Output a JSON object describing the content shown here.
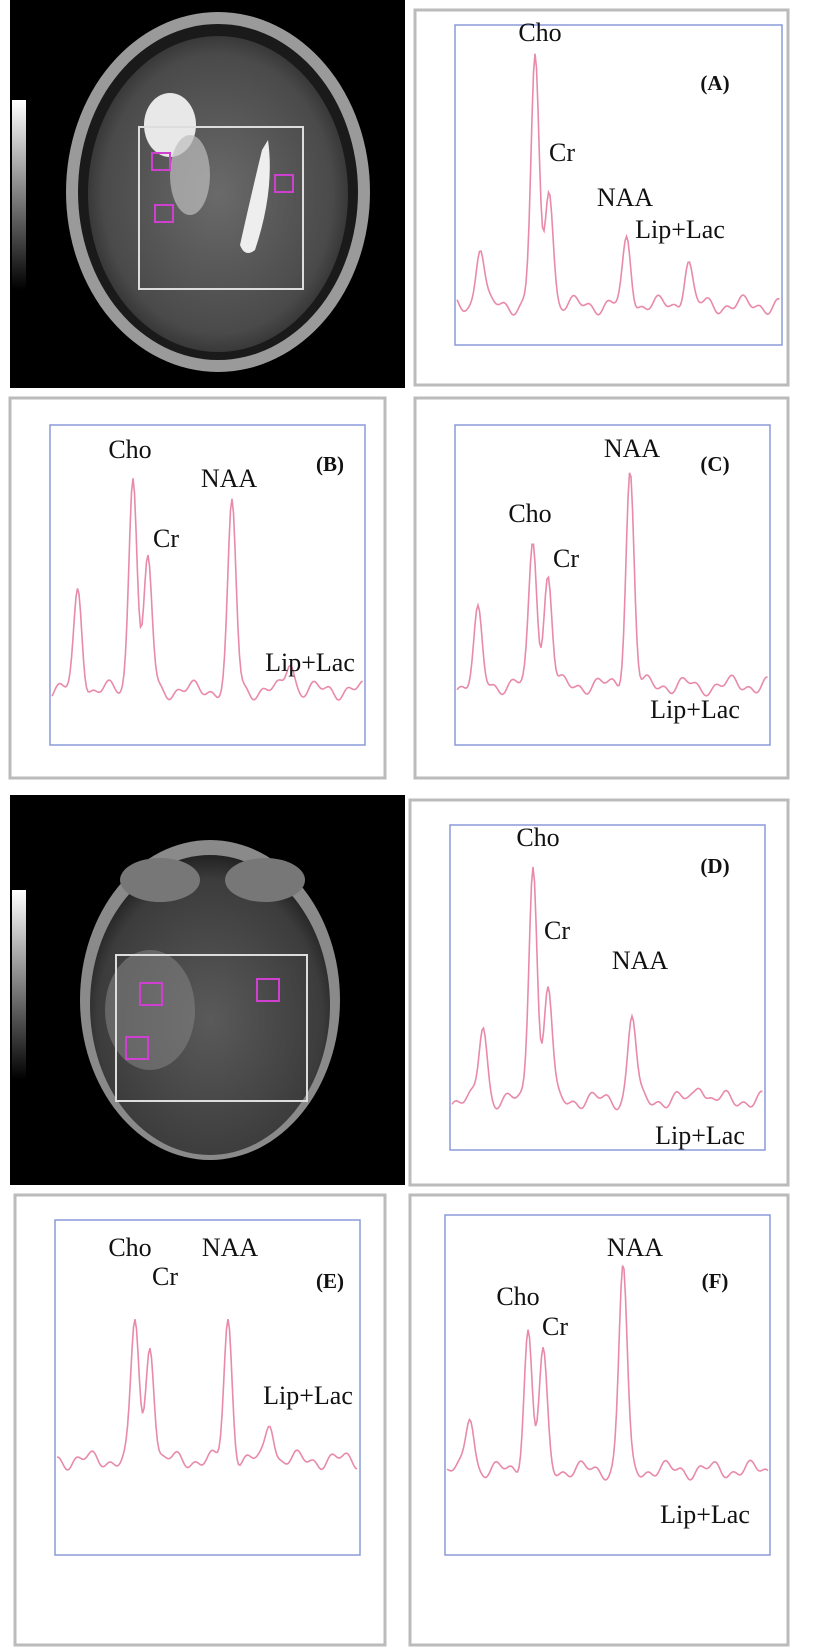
{
  "panels": [
    {
      "label": "(A)",
      "peaks": [
        "Cho",
        "Cr",
        "NAA",
        "Lip+Lac"
      ]
    },
    {
      "label": "(B)",
      "peaks": [
        "Cho",
        "Cr",
        "NAA",
        "Lip+Lac"
      ]
    },
    {
      "label": "(C)",
      "peaks": [
        "Cho",
        "Cr",
        "NAA",
        "Lip+Lac"
      ]
    },
    {
      "label": "(D)",
      "peaks": [
        "Cho",
        "Cr",
        "NAA",
        "Lip+Lac"
      ]
    },
    {
      "label": "(E)",
      "peaks": [
        "Cho",
        "Cr",
        "NAA",
        "Lip+Lac"
      ]
    },
    {
      "label": "(F)",
      "peaks": [
        "Cho",
        "Cr",
        "NAA",
        "Lip+Lac"
      ]
    }
  ]
}
